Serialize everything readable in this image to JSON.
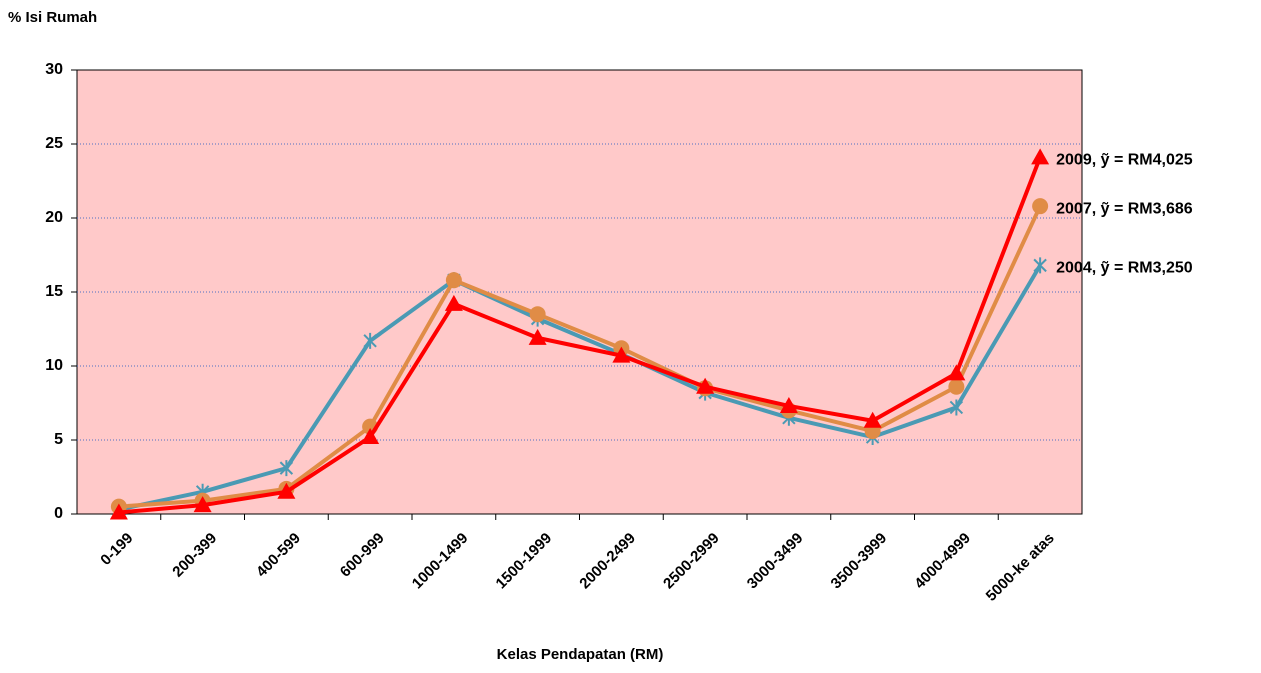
{
  "chart_data": {
    "type": "line",
    "ylabel": "% Isi Rumah",
    "xlabel": "Kelas Pendapatan (RM)",
    "categories": [
      "0-199",
      "200-399",
      "400-599",
      "600-999",
      "1000-1499",
      "1500-1999",
      "2000-2499",
      "2500-2999",
      "3000-3499",
      "3500-3999",
      "4000-4999",
      "5000-ke atas"
    ],
    "series": [
      {
        "name": "2004,  ỹ = RM3,250",
        "color": "#4a9ab4",
        "marker": "star",
        "values": [
          0.3,
          1.5,
          3.1,
          11.7,
          15.8,
          13.2,
          10.8,
          8.2,
          6.5,
          5.2,
          7.2,
          16.8
        ]
      },
      {
        "name": "2007,  ỹ = RM3,686",
        "color": "#e08c46",
        "marker": "circle",
        "values": [
          0.5,
          0.9,
          1.7,
          5.9,
          15.8,
          13.5,
          11.2,
          8.5,
          7.0,
          5.6,
          8.6,
          20.8
        ]
      },
      {
        "name": "2009,  ỹ = RM4,025",
        "color": "#ff0000",
        "marker": "triangle",
        "values": [
          0.1,
          0.6,
          1.5,
          5.2,
          14.2,
          11.9,
          10.7,
          8.6,
          7.3,
          6.3,
          9.5,
          24.1
        ]
      }
    ],
    "ylim": [
      0,
      30
    ],
    "yticks": [
      0,
      5,
      10,
      15,
      20,
      25,
      30
    ],
    "grid": true,
    "plot_background": "#ffc9c9"
  }
}
